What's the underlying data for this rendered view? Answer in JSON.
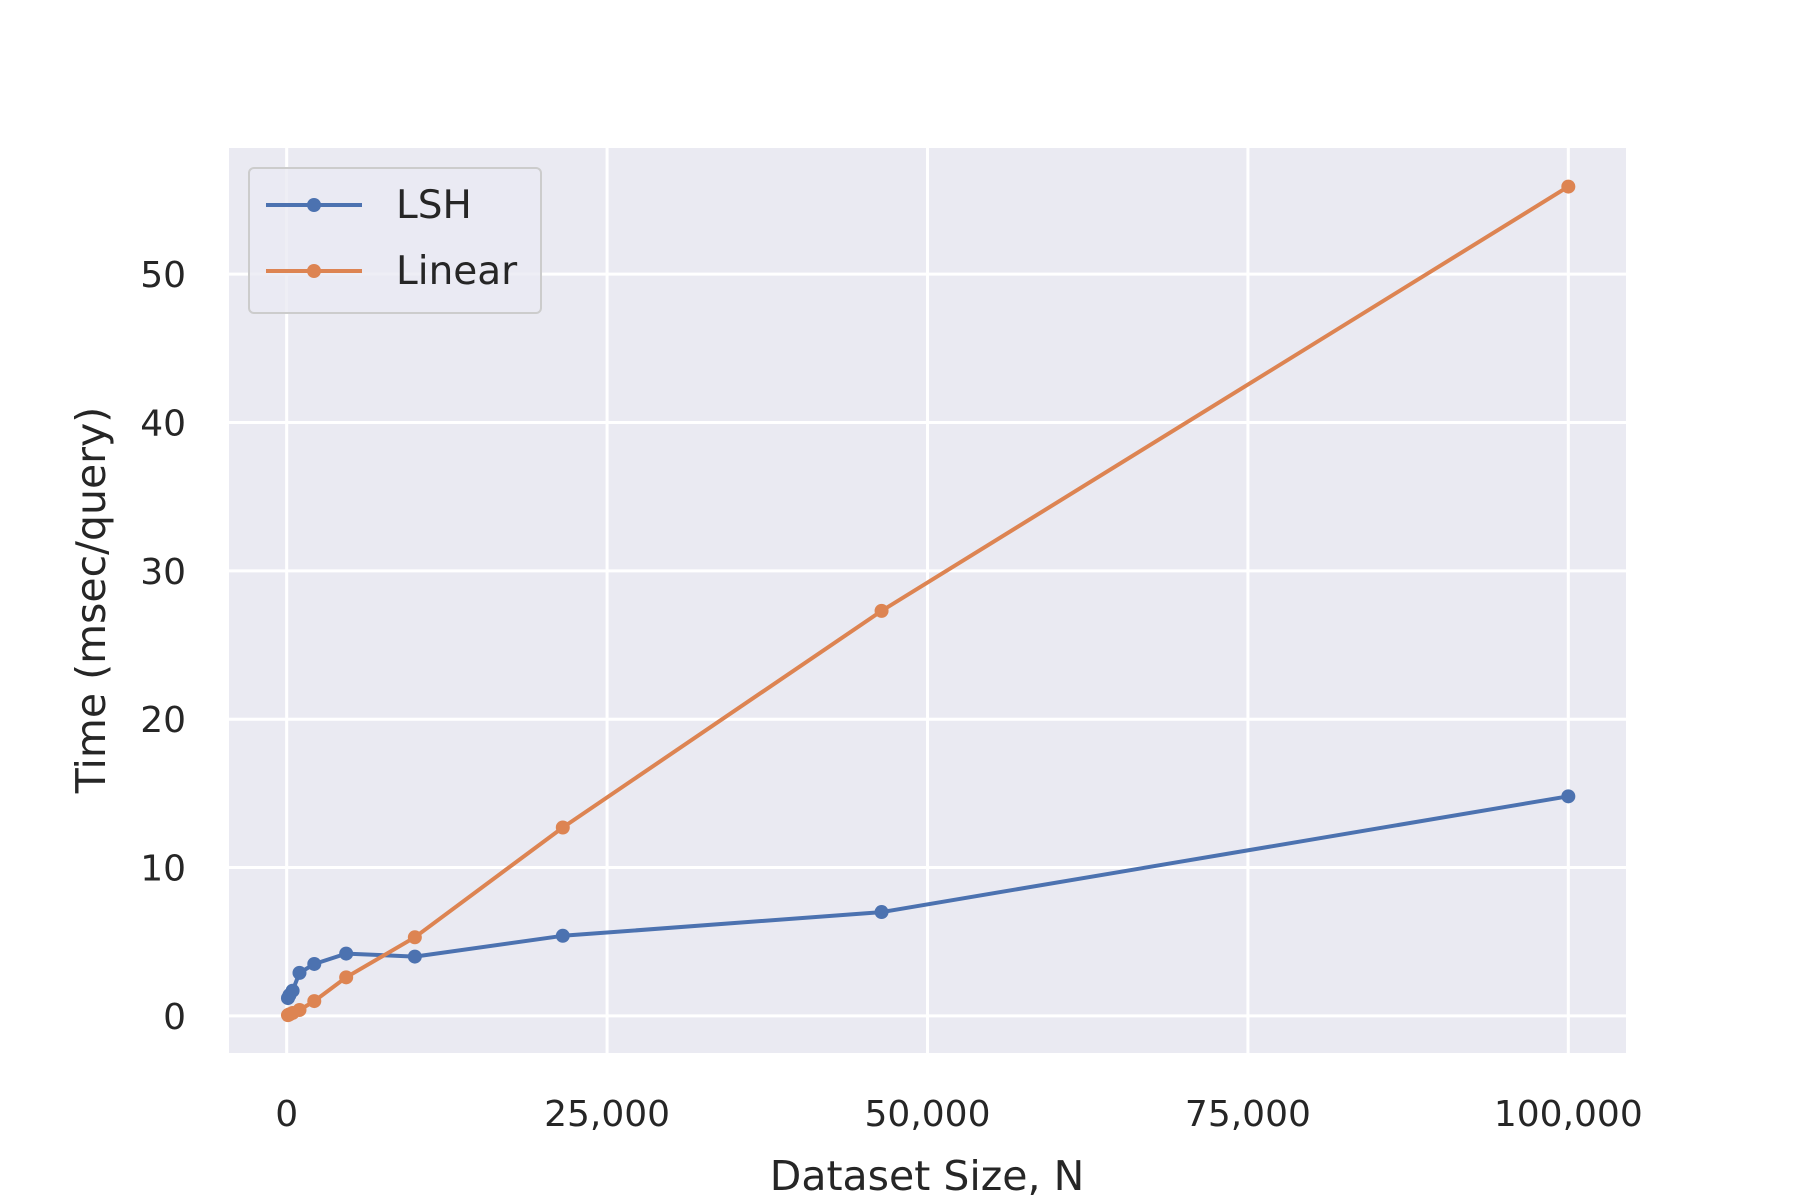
{
  "chart_data": {
    "type": "line",
    "title": "",
    "xlabel": "Dataset Size, N",
    "ylabel": "Time (msec/query)",
    "xlim": [
      -4500,
      104500
    ],
    "ylim": [
      -2.5,
      58.5
    ],
    "xticks": [
      0,
      25000,
      50000,
      75000,
      100000
    ],
    "xtick_labels": [
      "0",
      "25,000",
      "50,000",
      "75,000",
      "100,000"
    ],
    "yticks": [
      0,
      10,
      20,
      30,
      40,
      50
    ],
    "ytick_labels": [
      "0",
      "10",
      "20",
      "30",
      "40",
      "50"
    ],
    "grid": true,
    "legend_position": "top-left",
    "background": "#eaeaf2",
    "series": [
      {
        "name": "LSH",
        "color": "#4c72b0",
        "x": [
          100,
          215,
          464,
          1000,
          2154,
          4642,
          10000,
          21544,
          46416,
          100000
        ],
        "y": [
          1.2,
          1.4,
          1.7,
          2.9,
          3.5,
          4.2,
          4.0,
          5.4,
          7.0,
          14.8
        ]
      },
      {
        "name": "Linear",
        "color": "#dd8452",
        "x": [
          100,
          215,
          464,
          1000,
          2154,
          4642,
          10000,
          21544,
          46416,
          100000
        ],
        "y": [
          0.05,
          0.1,
          0.2,
          0.4,
          1.0,
          2.6,
          5.3,
          12.7,
          27.3,
          55.9
        ]
      }
    ]
  }
}
